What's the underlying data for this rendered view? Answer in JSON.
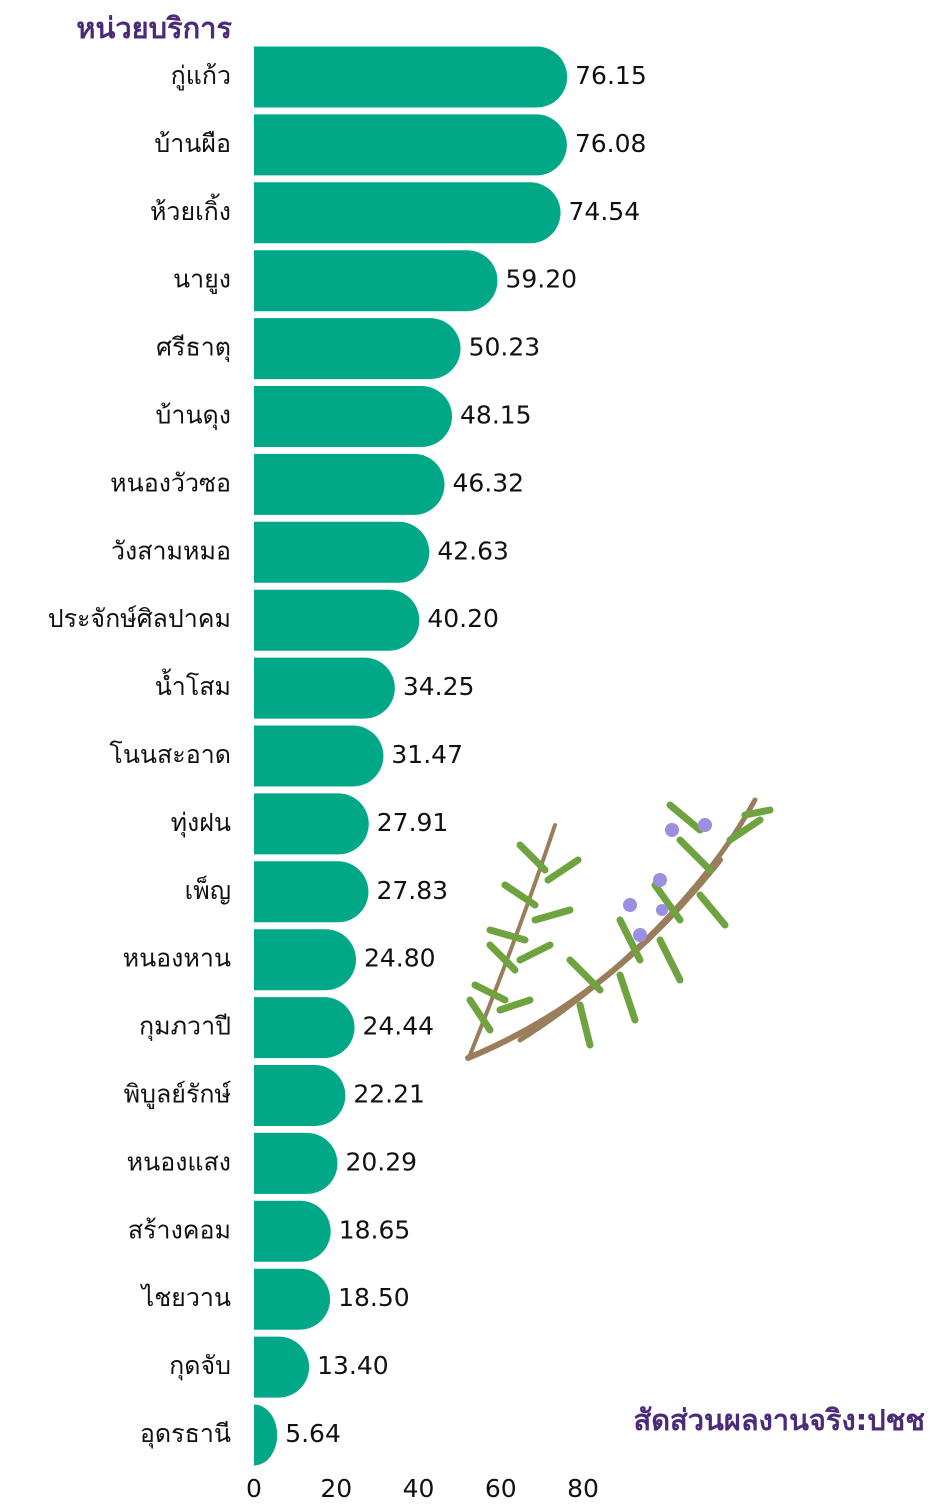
{
  "chart_data": {
    "type": "bar",
    "orientation": "horizontal",
    "y_label": "หน่วยบริการ",
    "x_label": "สัดส่วนผลงานจริง:ปชช",
    "categories": [
      "กู่แก้ว",
      "บ้านผือ",
      "ห้วยเกิ้ง",
      "นายูง",
      "ศรีธาตุ",
      "บ้านดุง",
      "หนองวัวซอ",
      "วังสามหมอ",
      "ประจักษ์ศิลปาคม",
      "น้ำโสม",
      "โนนสะอาด",
      "ทุ่งฝน",
      "เพ็ญ",
      "หนองหาน",
      "กุมภวาปี",
      "พิบูลย์รักษ์",
      "หนองแสง",
      "สร้างคอม",
      "ไชยวาน",
      "กุดจับ",
      "อุดรธานี"
    ],
    "values": [
      76.15,
      76.08,
      74.54,
      59.2,
      50.23,
      48.15,
      46.32,
      42.63,
      40.2,
      34.25,
      31.47,
      27.91,
      27.83,
      24.8,
      24.44,
      22.21,
      20.29,
      18.65,
      18.5,
      13.4,
      5.64
    ],
    "value_labels": [
      "76.15",
      "76.08",
      "74.54",
      "59.20",
      "50.23",
      "48.15",
      "46.32",
      "42.63",
      "40.20",
      "34.25",
      "31.47",
      "27.91",
      "27.83",
      "24.80",
      "24.44",
      "22.21",
      "20.29",
      "18.65",
      "18.50",
      "13.40",
      "5.64"
    ],
    "color": "#00a887",
    "xlim": [
      0,
      80
    ],
    "xticks": [
      0,
      20,
      40,
      60,
      80
    ],
    "grid": false
  }
}
